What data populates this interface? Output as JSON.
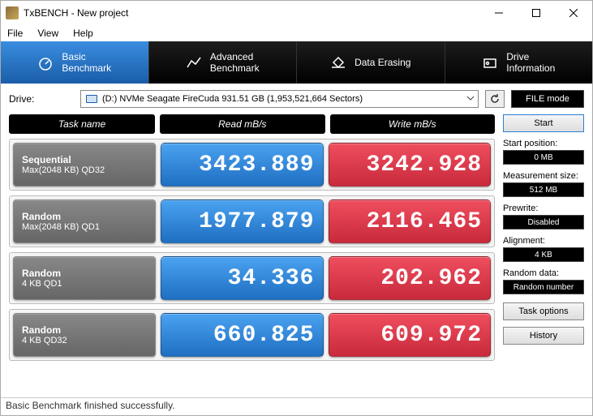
{
  "window": {
    "title": "TxBENCH - New project"
  },
  "menu": {
    "file": "File",
    "view": "View",
    "help": "Help"
  },
  "tabs": {
    "basic": "Basic\nBenchmark",
    "advanced": "Advanced\nBenchmark",
    "erase": "Data Erasing",
    "info": "Drive\nInformation"
  },
  "drive": {
    "label": "Drive:",
    "selected": "(D:) NVMe Seagate FireCuda  931.51 GB (1,953,521,664 Sectors)",
    "filemode": "FILE mode"
  },
  "headers": {
    "task": "Task name",
    "read": "Read mB/s",
    "write": "Write mB/s"
  },
  "rows": [
    {
      "t1": "Sequential",
      "t2": "Max(2048 KB) QD32",
      "read": "3423.889",
      "write": "3242.928"
    },
    {
      "t1": "Random",
      "t2": "Max(2048 KB) QD1",
      "read": "1977.879",
      "write": "2116.465"
    },
    {
      "t1": "Random",
      "t2": "4 KB QD1",
      "read": "34.336",
      "write": "202.962"
    },
    {
      "t1": "Random",
      "t2": "4 KB QD32",
      "read": "660.825",
      "write": "609.972"
    }
  ],
  "side": {
    "start": "Start",
    "startpos_lbl": "Start position:",
    "startpos": "0 MB",
    "meassize_lbl": "Measurement size:",
    "meassize": "512 MB",
    "prewrite_lbl": "Prewrite:",
    "prewrite": "Disabled",
    "align_lbl": "Alignment:",
    "align": "4 KB",
    "data_lbl": "Random data:",
    "data": "Random number",
    "taskopt": "Task options",
    "history": "History"
  },
  "status": "Basic Benchmark finished successfully."
}
